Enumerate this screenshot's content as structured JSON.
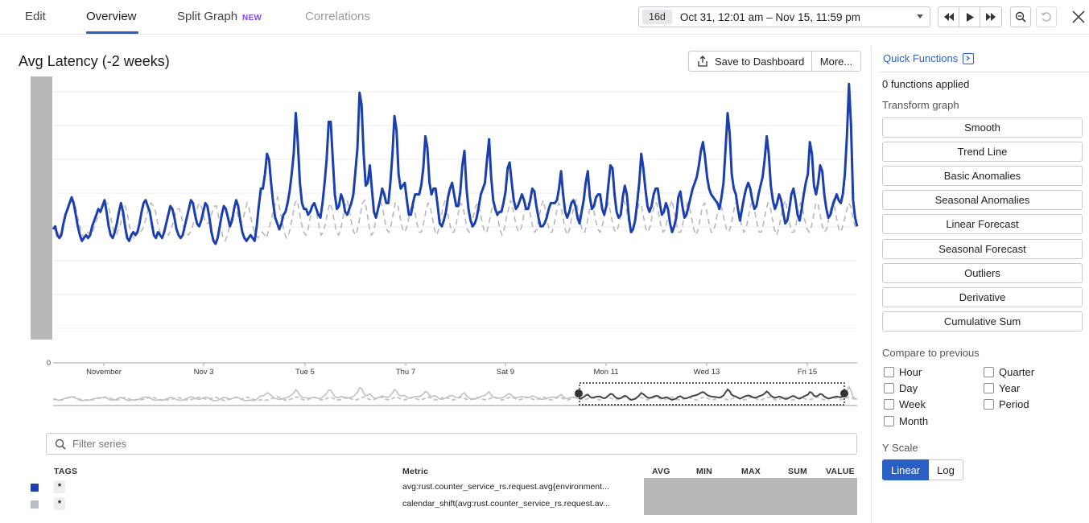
{
  "tabs": [
    {
      "label": "Edit"
    },
    {
      "label": "Overview"
    },
    {
      "label": "Split Graph",
      "badge": "NEW"
    },
    {
      "label": "Correlations"
    }
  ],
  "timepicker": {
    "badge": "16d",
    "range": "Oct 31, 12:01 am – Nov 15, 11:59 pm"
  },
  "graph": {
    "title": "Avg Latency (-2 weeks)",
    "save_label": "Save to Dashboard",
    "more_label": "More...",
    "y_zero_label": "0"
  },
  "chart_data": {
    "type": "line",
    "x_tick_labels": [
      "November",
      "Nov 3",
      "Tue 5",
      "Thu 7",
      "Sat 9",
      "Mon 11",
      "Wed 13",
      "Fri 15"
    ],
    "y_tick_labels": [
      "0"
    ],
    "grid": true,
    "series_colors": [
      "#1b3fad",
      "#b8b8bc"
    ],
    "series": [
      {
        "values": [
          0.46,
          0.47,
          0.44,
          0.43,
          0.44,
          0.48,
          0.51,
          0.53,
          0.55,
          0.57,
          0.55,
          0.51,
          0.47,
          0.44,
          0.42,
          0.43,
          0.44,
          0.43,
          0.44,
          0.47,
          0.49,
          0.51,
          0.53,
          0.52,
          0.54,
          0.56,
          0.52,
          0.47,
          0.44,
          0.43,
          0.45,
          0.48,
          0.52,
          0.55,
          0.52,
          0.47,
          0.43,
          0.42,
          0.44,
          0.45,
          0.44,
          0.45,
          0.48,
          0.52,
          0.55,
          0.56,
          0.54,
          0.52,
          0.48,
          0.44,
          0.43,
          0.45,
          0.44,
          0.43,
          0.45,
          0.48,
          0.51,
          0.54,
          0.53,
          0.5,
          0.46,
          0.44,
          0.43,
          0.44,
          0.47,
          0.5,
          0.53,
          0.56,
          0.55,
          0.51,
          0.48,
          0.47,
          0.49,
          0.52,
          0.55,
          0.54,
          0.5,
          0.45,
          0.42,
          0.41,
          0.43,
          0.47,
          0.51,
          0.54,
          0.53,
          0.5,
          0.47,
          0.49,
          0.53,
          0.56,
          0.54,
          0.49,
          0.45,
          0.43,
          0.42,
          0.43,
          0.44,
          0.43,
          0.42,
          0.47,
          0.54,
          0.6,
          0.6,
          0.65,
          0.72,
          0.7,
          0.62,
          0.55,
          0.5,
          0.48,
          0.46,
          0.48,
          0.51,
          0.52,
          0.55,
          0.59,
          0.65,
          0.72,
          0.86,
          0.76,
          0.62,
          0.55,
          0.53,
          0.53,
          0.51,
          0.52,
          0.54,
          0.55,
          0.53,
          0.51,
          0.5,
          0.55,
          0.62,
          0.7,
          0.83,
          0.83,
          0.7,
          0.58,
          0.53,
          0.54,
          0.58,
          0.56,
          0.52,
          0.51,
          0.53,
          0.55,
          0.58,
          0.66,
          0.74,
          0.93,
          0.89,
          0.72,
          0.61,
          0.62,
          0.68,
          0.6,
          0.52,
          0.5,
          0.53,
          0.56,
          0.6,
          0.58,
          0.55,
          0.55,
          0.62,
          0.72,
          0.85,
          0.8,
          0.65,
          0.6,
          0.61,
          0.62,
          0.56,
          0.51,
          0.51,
          0.55,
          0.58,
          0.58,
          0.58,
          0.61,
          0.67,
          0.78,
          0.74,
          0.62,
          0.58,
          0.6,
          0.6,
          0.54,
          0.48,
          0.47,
          0.49,
          0.52,
          0.57,
          0.6,
          0.62,
          0.58,
          0.54,
          0.54,
          0.59,
          0.68,
          0.73,
          0.6,
          0.53,
          0.49,
          0.47,
          0.48,
          0.5,
          0.54,
          0.58,
          0.6,
          0.62,
          0.7,
          0.77,
          0.64,
          0.56,
          0.53,
          0.51,
          0.52,
          0.52,
          0.55,
          0.59,
          0.67,
          0.69,
          0.62,
          0.56,
          0.53,
          0.54,
          0.56,
          0.58,
          0.56,
          0.53,
          0.53,
          0.56,
          0.6,
          0.59,
          0.54,
          0.5,
          0.47,
          0.47,
          0.48,
          0.5,
          0.53,
          0.55,
          0.55,
          0.55,
          0.56,
          0.6,
          0.66,
          0.58,
          0.52,
          0.5,
          0.52,
          0.55,
          0.56,
          0.54,
          0.5,
          0.48,
          0.52,
          0.56,
          0.62,
          0.66,
          0.57,
          0.53,
          0.54,
          0.57,
          0.58,
          0.58,
          0.53,
          0.51,
          0.54,
          0.61,
          0.68,
          0.67,
          0.58,
          0.52,
          0.5,
          0.51,
          0.57,
          0.61,
          0.58,
          0.5,
          0.45,
          0.46,
          0.49,
          0.55,
          0.62,
          0.72,
          0.67,
          0.6,
          0.54,
          0.52,
          0.54,
          0.58,
          0.6,
          0.6,
          0.55,
          0.51,
          0.52,
          0.55,
          0.53,
          0.48,
          0.45,
          0.47,
          0.5,
          0.57,
          0.59,
          0.54,
          0.5,
          0.51,
          0.54,
          0.57,
          0.6,
          0.62,
          0.64,
          0.68,
          0.73,
          0.76,
          0.71,
          0.64,
          0.6,
          0.58,
          0.57,
          0.56,
          0.55,
          0.53,
          0.57,
          0.62,
          0.74,
          0.86,
          0.79,
          0.65,
          0.6,
          0.58,
          0.53,
          0.49,
          0.53,
          0.57,
          0.6,
          0.62,
          0.6,
          0.56,
          0.53,
          0.54,
          0.58,
          0.61,
          0.64,
          0.7,
          0.78,
          0.72,
          0.61,
          0.56,
          0.53,
          0.55,
          0.58,
          0.56,
          0.52,
          0.48,
          0.49,
          0.53,
          0.58,
          0.6,
          0.56,
          0.51,
          0.49,
          0.53,
          0.58,
          0.62,
          0.65,
          0.76,
          0.72,
          0.61,
          0.58,
          0.62,
          0.68,
          0.66,
          0.58,
          0.53,
          0.5,
          0.51,
          0.54,
          0.56,
          0.58,
          0.56,
          0.55,
          0.58,
          0.65,
          0.78,
          0.96,
          0.82,
          0.56,
          0.5,
          0.47
        ]
      },
      {
        "values": [
          0.46,
          0.47,
          0.45,
          0.44,
          0.45,
          0.48,
          0.51,
          0.53,
          0.55,
          0.56,
          0.55,
          0.51,
          0.48,
          0.45,
          0.43,
          0.44,
          0.45,
          0.44,
          0.45,
          0.47,
          0.49,
          0.51,
          0.53,
          0.53,
          0.54,
          0.55,
          0.52,
          0.48,
          0.45,
          0.44,
          0.46,
          0.48,
          0.52,
          0.54,
          0.52,
          0.47,
          0.44,
          0.43,
          0.45,
          0.46,
          0.45,
          0.46,
          0.48,
          0.51,
          0.54,
          0.55,
          0.54,
          0.52,
          0.48,
          0.45,
          0.44,
          0.46,
          0.45,
          0.44,
          0.46,
          0.48,
          0.51,
          0.53,
          0.53,
          0.5,
          0.47,
          0.45,
          0.44,
          0.45,
          0.47,
          0.5,
          0.53,
          0.55,
          0.54,
          0.51,
          0.48,
          0.48,
          0.49,
          0.52,
          0.54,
          0.54,
          0.5,
          0.46,
          0.43,
          0.42,
          0.44,
          0.47,
          0.51,
          0.53,
          0.53,
          0.5,
          0.48,
          0.49,
          0.52,
          0.55,
          0.53,
          0.49,
          0.46,
          0.44,
          0.43,
          0.44,
          0.45,
          0.44,
          0.43,
          0.46,
          0.49,
          0.52,
          0.55,
          0.57,
          0.53,
          0.49,
          0.45,
          0.43,
          0.44,
          0.47,
          0.51,
          0.55,
          0.56,
          0.52,
          0.48,
          0.45,
          0.44,
          0.46,
          0.5,
          0.54,
          0.55,
          0.51,
          0.47,
          0.44,
          0.45,
          0.48,
          0.52,
          0.55,
          0.53,
          0.49,
          0.45,
          0.44,
          0.46,
          0.5,
          0.54,
          0.56,
          0.52,
          0.48,
          0.45,
          0.44,
          0.47,
          0.51,
          0.55,
          0.56,
          0.52,
          0.47,
          0.44,
          0.45,
          0.49,
          0.53,
          0.56,
          0.54,
          0.5,
          0.46,
          0.45,
          0.47,
          0.51,
          0.55,
          0.55,
          0.51,
          0.47,
          0.45,
          0.46,
          0.49,
          0.53,
          0.55,
          0.52,
          0.48,
          0.45,
          0.45,
          0.48,
          0.52,
          0.55,
          0.54,
          0.5,
          0.46,
          0.44,
          0.46,
          0.5,
          0.54,
          0.56,
          0.52,
          0.48,
          0.45,
          0.45,
          0.48,
          0.52,
          0.55,
          0.54,
          0.5,
          0.46,
          0.45,
          0.47,
          0.51,
          0.54,
          0.55,
          0.52,
          0.48,
          0.45,
          0.45,
          0.48,
          0.52,
          0.55,
          0.54,
          0.5,
          0.46,
          0.44,
          0.46,
          0.5,
          0.53,
          0.56,
          0.53,
          0.49,
          0.46,
          0.45,
          0.47,
          0.51,
          0.55,
          0.55,
          0.51,
          0.47,
          0.45,
          0.46,
          0.5,
          0.54,
          0.56,
          0.52,
          0.48,
          0.45,
          0.45,
          0.48,
          0.52,
          0.55,
          0.54,
          0.5,
          0.46,
          0.44,
          0.46,
          0.5,
          0.54,
          0.56,
          0.52,
          0.48,
          0.45,
          0.45,
          0.48,
          0.52,
          0.55,
          0.53,
          0.49,
          0.46,
          0.45,
          0.47,
          0.51,
          0.54,
          0.55,
          0.51,
          0.47,
          0.45,
          0.46,
          0.49,
          0.53,
          0.56,
          0.53,
          0.49,
          0.46,
          0.45,
          0.48,
          0.52,
          0.55,
          0.54,
          0.5,
          0.46,
          0.45,
          0.47,
          0.51,
          0.55,
          0.55,
          0.51,
          0.47,
          0.45,
          0.46,
          0.5,
          0.54,
          0.56,
          0.52,
          0.48,
          0.45,
          0.45,
          0.48,
          0.52,
          0.55,
          0.54,
          0.5,
          0.46,
          0.44,
          0.46,
          0.5,
          0.54,
          0.55,
          0.52,
          0.48,
          0.45,
          0.45,
          0.48,
          0.52,
          0.55,
          0.53,
          0.49,
          0.46,
          0.45,
          0.47,
          0.51,
          0.55,
          0.55,
          0.51,
          0.47,
          0.45,
          0.46,
          0.5,
          0.54,
          0.56,
          0.52,
          0.48,
          0.45,
          0.45,
          0.48,
          0.52,
          0.55,
          0.54,
          0.5,
          0.46,
          0.44,
          0.46,
          0.5,
          0.54,
          0.56,
          0.52,
          0.48,
          0.45,
          0.45,
          0.48,
          0.52,
          0.55,
          0.53,
          0.49,
          0.46,
          0.45,
          0.47,
          0.51,
          0.55,
          0.55,
          0.51,
          0.47,
          0.45,
          0.46,
          0.5,
          0.54,
          0.56,
          0.52,
          0.48,
          0.45,
          0.46,
          0.49,
          0.52,
          0.55,
          0.54,
          0.5,
          0.47,
          0.46
        ]
      }
    ]
  },
  "filter": {
    "placeholder": "Filter series"
  },
  "legend": {
    "headers": {
      "tags": "TAGS",
      "metric": "Metric",
      "avg": "AVG",
      "min": "MIN",
      "max": "MAX",
      "sum": "SUM",
      "value": "VALUE"
    },
    "rows": [
      {
        "tag": "*",
        "metric": "avg:rust.counter_service_rs.request.avg{environment...",
        "color": "#1b3fad"
      },
      {
        "tag": "*",
        "metric": "calendar_shift(avg:rust.counter_service_rs.request.av...",
        "color": "#b8bcc4"
      }
    ]
  },
  "panel": {
    "title": "Quick Functions",
    "applied": "0 functions applied",
    "transform_label": "Transform graph",
    "functions": [
      "Smooth",
      "Trend Line",
      "Basic Anomalies",
      "Seasonal Anomalies",
      "Linear Forecast",
      "Seasonal Forecast",
      "Outliers",
      "Derivative",
      "Cumulative Sum"
    ],
    "compare_label": "Compare to previous",
    "compare_left": [
      "Hour",
      "Day",
      "Week",
      "Month"
    ],
    "compare_right": [
      "Quarter",
      "Year",
      "Period"
    ],
    "yscale_label": "Y Scale",
    "yscale_options": [
      "Linear",
      "Log"
    ],
    "yscale_selected": "Linear"
  },
  "colors": {
    "accent": "#2a5fc5",
    "series_primary": "#1b3fad",
    "series_compare": "#b8b8bc"
  },
  "icons": {
    "share": "share-icon",
    "quick_functions": "panel-icon",
    "search": "search-icon"
  }
}
